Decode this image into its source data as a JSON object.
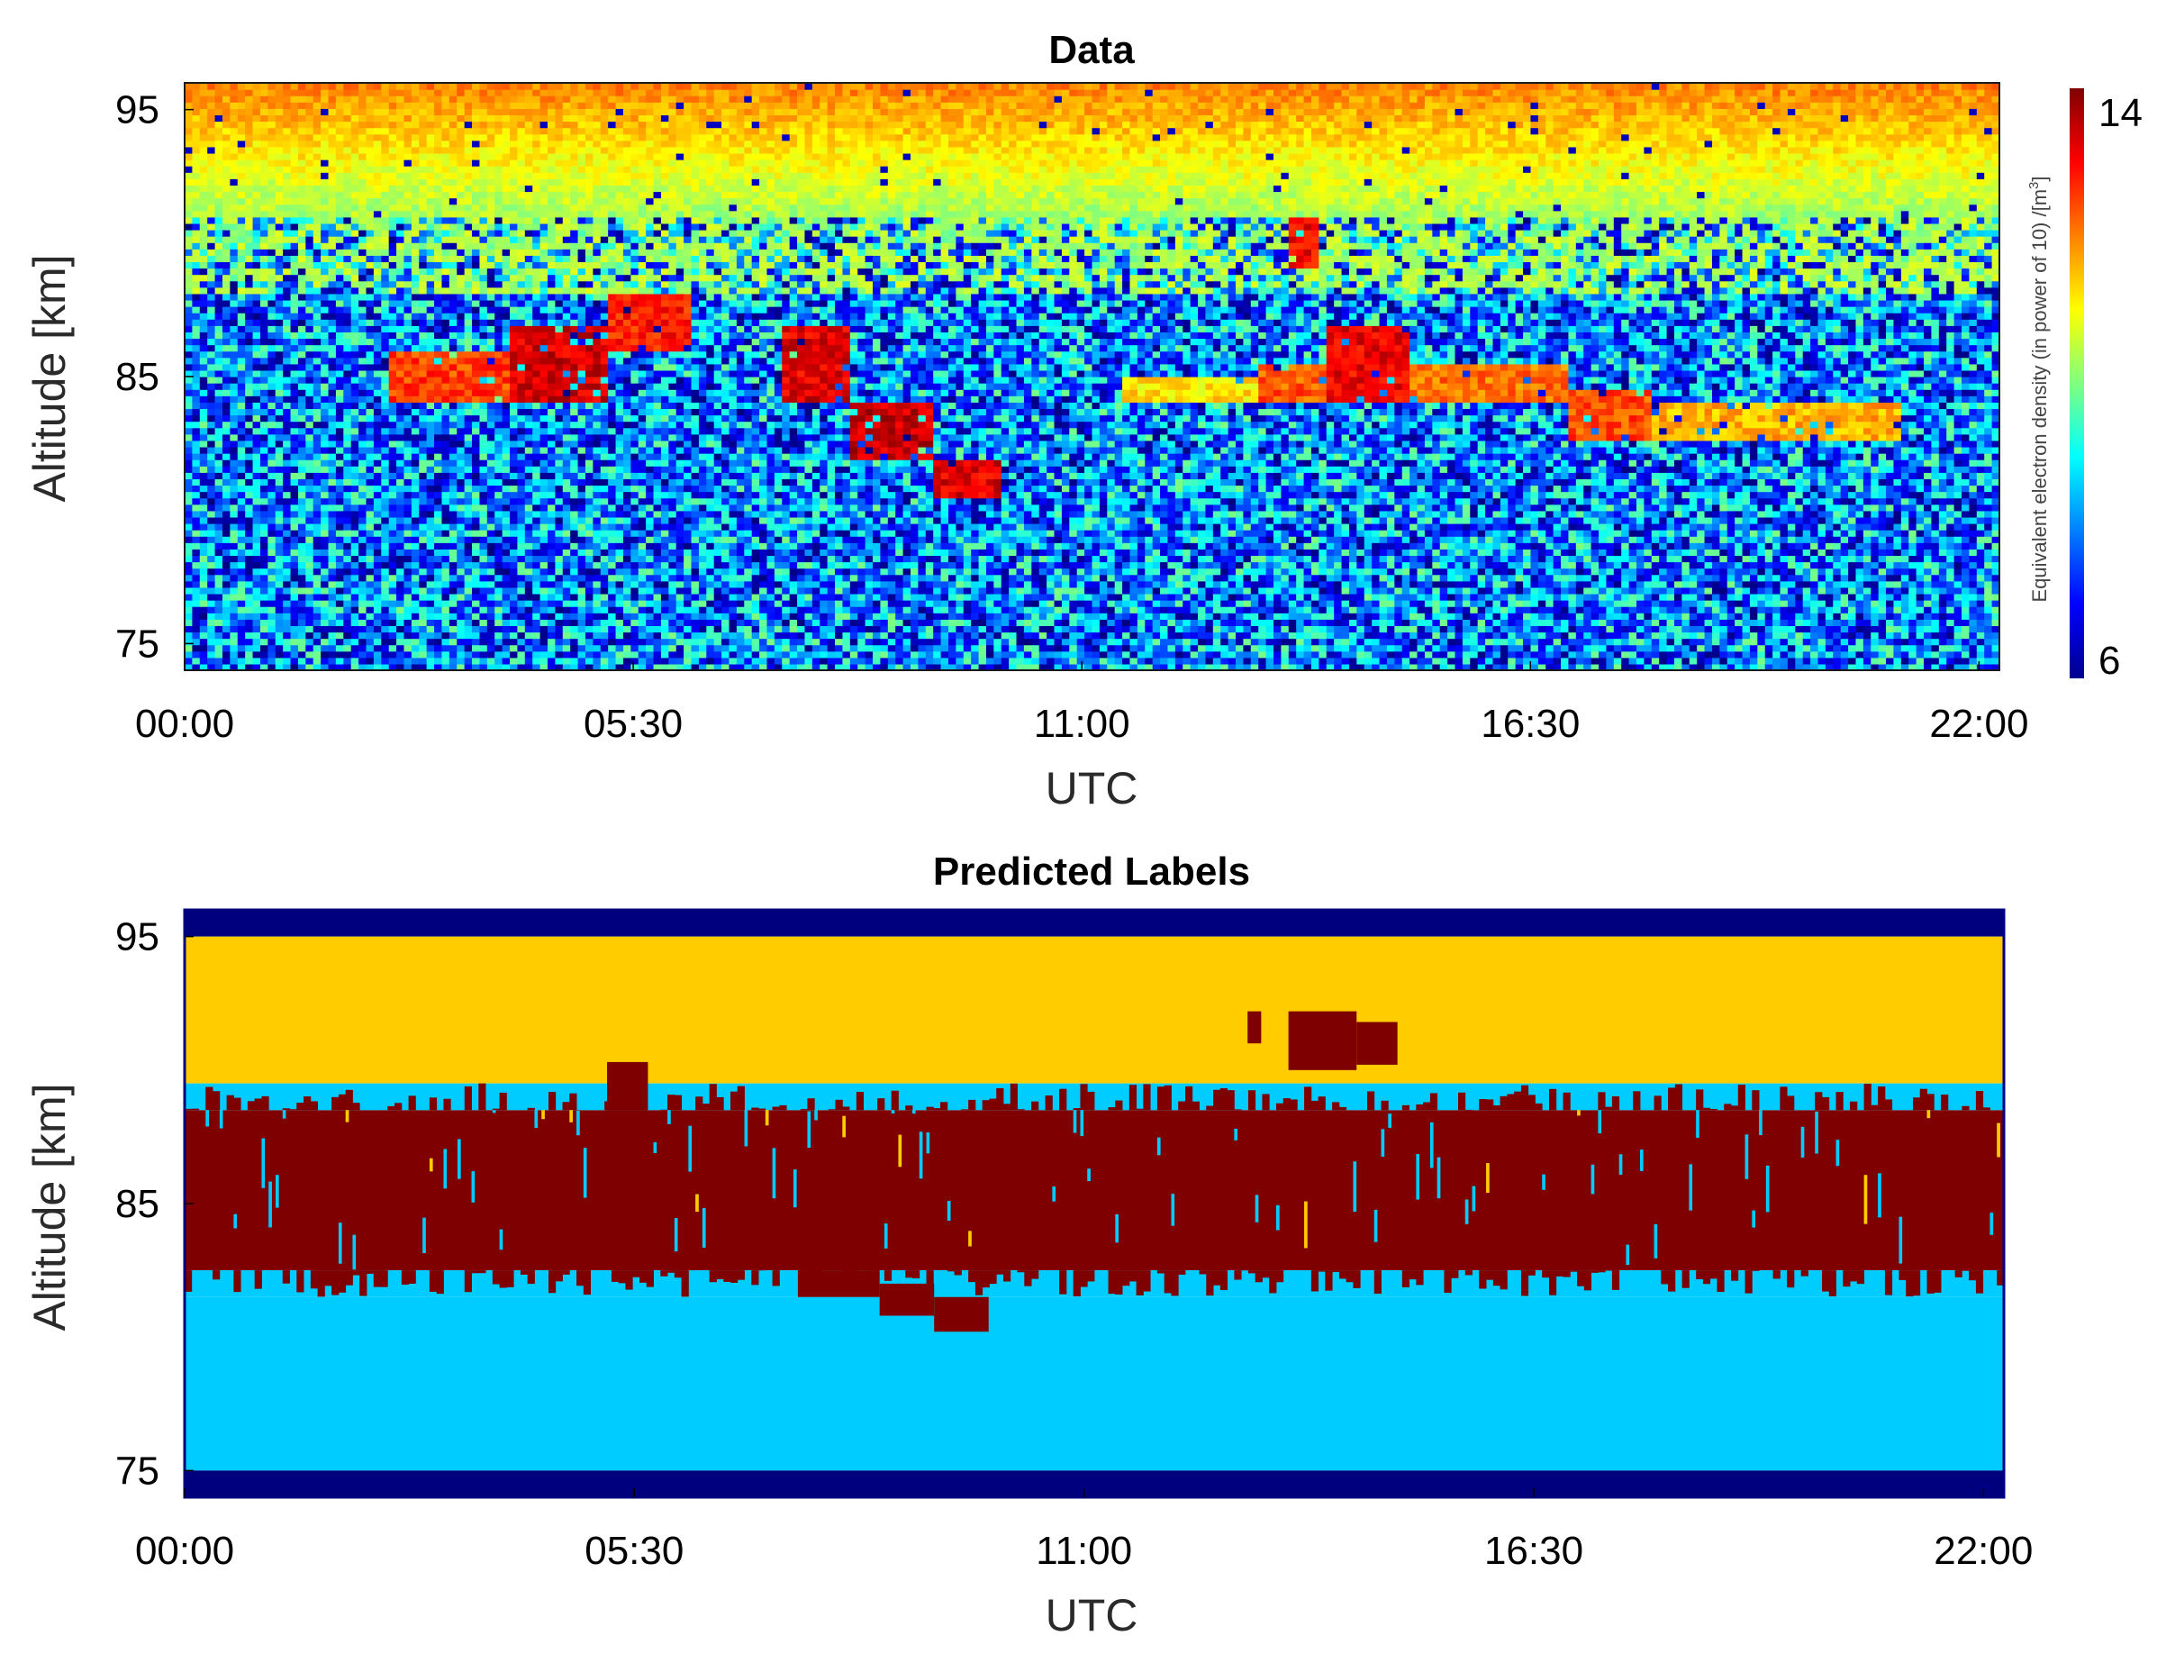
{
  "chart_data": [
    {
      "type": "heatmap",
      "title": "Data",
      "xlabel": "UTC",
      "ylabel": "Altitude [km]",
      "x_ticks": [
        "00:00",
        "05:30",
        "11:00",
        "16:30",
        "22:00"
      ],
      "y_ticks": [
        "75",
        "85",
        "95"
      ],
      "xlim": [
        "00:00",
        "22:15"
      ],
      "ylim": [
        74,
        96
      ],
      "colorbar": {
        "label": "Equivalent electron density (in power of 10) /[m",
        "label_sup": "3",
        "label_end": "]",
        "ticks": [
          "6",
          "14"
        ],
        "range": [
          6,
          14
        ],
        "colormap": "jet"
      },
      "background_noise_range": [
        6,
        10
      ],
      "upper_layer": {
        "altitude_from": 91,
        "value": 12
      },
      "echo_features": [
        {
          "from": "02:30",
          "to": "04:00",
          "alt_low": 84,
          "alt_high": 86,
          "value": 12.5
        },
        {
          "from": "04:00",
          "to": "05:10",
          "alt_low": 84,
          "alt_high": 87,
          "value": 13.3
        },
        {
          "from": "05:10",
          "to": "06:10",
          "alt_low": 86,
          "alt_high": 88,
          "value": 12.8
        },
        {
          "from": "07:20",
          "to": "08:10",
          "alt_low": 84,
          "alt_high": 87,
          "value": 13.2
        },
        {
          "from": "08:10",
          "to": "09:10",
          "alt_low": 82,
          "alt_high": 84,
          "value": 13.4
        },
        {
          "from": "09:10",
          "to": "10:00",
          "alt_low": 80.5,
          "alt_high": 82,
          "value": 13.2
        },
        {
          "from": "11:30",
          "to": "13:10",
          "alt_low": 84,
          "alt_high": 85,
          "value": 11.2
        },
        {
          "from": "13:30",
          "to": "13:55",
          "alt_low": 89,
          "alt_high": 91,
          "value": 13
        },
        {
          "from": "13:10",
          "to": "14:00",
          "alt_low": 84,
          "alt_high": 85.5,
          "value": 12.3
        },
        {
          "from": "14:00",
          "to": "15:00",
          "alt_low": 84,
          "alt_high": 87,
          "value": 13.1
        },
        {
          "from": "15:00",
          "to": "17:00",
          "alt_low": 84,
          "alt_high": 85.5,
          "value": 12.1
        },
        {
          "from": "17:00",
          "to": "18:00",
          "alt_low": 82.5,
          "alt_high": 84.5,
          "value": 12.4
        },
        {
          "from": "18:00",
          "to": "21:00",
          "alt_low": 82.5,
          "alt_high": 84,
          "value": 11.6
        }
      ]
    },
    {
      "type": "heatmap",
      "title": "Predicted Labels",
      "xlabel": "UTC",
      "ylabel": "Altitude [km]",
      "x_ticks": [
        "00:00",
        "05:30",
        "11:00",
        "16:30",
        "22:00"
      ],
      "y_ticks": [
        "75",
        "85",
        "95"
      ],
      "xlim": [
        "00:00",
        "22:15"
      ],
      "ylim": [
        74,
        96
      ],
      "class_colors": {
        "padding": "#00007f",
        "upper": "#ffcc00",
        "background": "#00ccff",
        "echo": "#7f0000"
      },
      "bands": [
        {
          "class": "padding",
          "alt_low": 95,
          "alt_high": 96
        },
        {
          "class": "upper",
          "alt_low": 89.5,
          "alt_high": 95
        },
        {
          "class": "echo",
          "alt_low": 82.5,
          "alt_high": 88.5
        },
        {
          "class": "background",
          "alt_low": 75,
          "alt_high": 81.5
        },
        {
          "class": "padding",
          "alt_low": 74,
          "alt_high": 75
        }
      ],
      "echo_extensions": [
        {
          "from": "05:10",
          "to": "05:40",
          "alt_low": 88.5,
          "alt_high": 90.3
        },
        {
          "from": "07:30",
          "to": "08:30",
          "alt_low": 81.5,
          "alt_high": 82.5
        },
        {
          "from": "08:30",
          "to": "09:10",
          "alt_low": 80.8,
          "alt_high": 82
        },
        {
          "from": "09:10",
          "to": "09:50",
          "alt_low": 80.2,
          "alt_high": 81.5
        },
        {
          "from": "13:00",
          "to": "13:10",
          "alt_low": 91,
          "alt_high": 92.2
        },
        {
          "from": "13:30",
          "to": "14:20",
          "alt_low": 90,
          "alt_high": 92.2
        },
        {
          "from": "14:20",
          "to": "14:50",
          "alt_low": 90.2,
          "alt_high": 91.8
        }
      ]
    }
  ]
}
